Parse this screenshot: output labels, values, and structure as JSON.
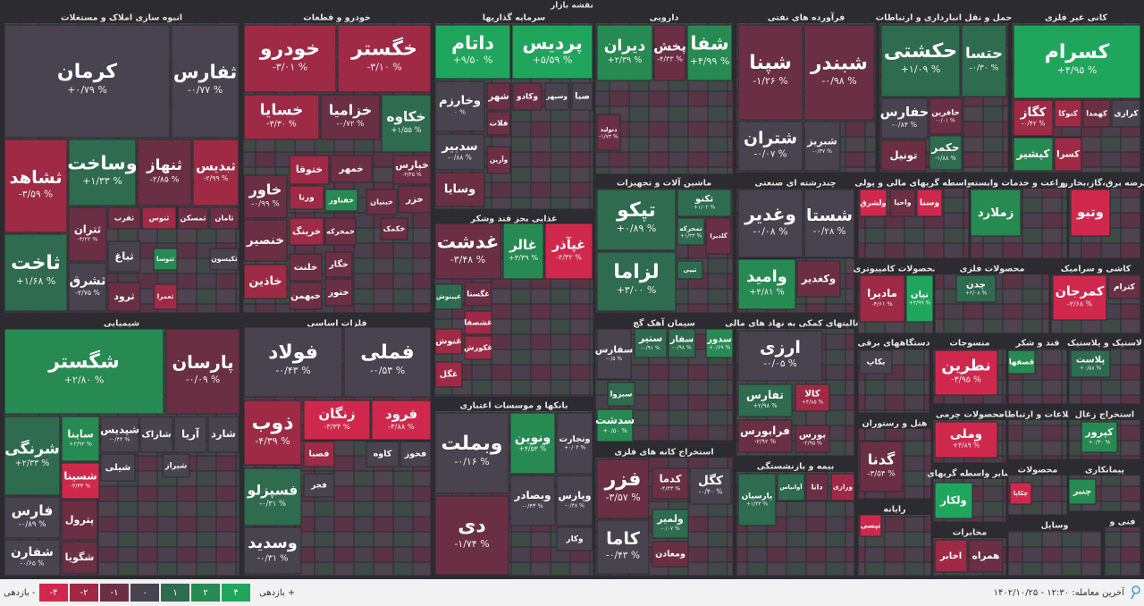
{
  "title": "نقشه بازار",
  "sectors": [
    {
      "name": "انبوه سازی املاک و مستغلات",
      "tiles": [
        {
          "symbol": "کرمان",
          "change": "+۰/۷۹ %",
          "color": "#48434f"
        },
        {
          "symbol": "ثفارس",
          "change": "-۰/۷۷ %",
          "color": "#48434f"
        },
        {
          "symbol": "ثشاهد",
          "change": "-۳/۵۹ %",
          "color": "#9e2a45"
        },
        {
          "symbol": "وساخت",
          "change": "+۱/۳۳ %",
          "color": "#2f6b4f"
        },
        {
          "symbol": "ثنهاز",
          "change": "-۲/۸۵ %",
          "color": "#6b2f44"
        },
        {
          "symbol": "ثبدیس",
          "change": "-۲/۹۹ %",
          "color": "#9e2a45"
        },
        {
          "symbol": "ثاخت",
          "change": "+۱/۶۸ %",
          "color": "#2f6b4f"
        },
        {
          "symbol": "ثتران",
          "change": "-۳/۲۲ %",
          "color": "#6b2f44"
        },
        {
          "symbol": "ثفرب",
          "color": "#6b2f44"
        },
        {
          "symbol": "ثنوس",
          "color": "#9e2a45"
        },
        {
          "symbol": "ثمسکن",
          "color": "#6b2f44"
        },
        {
          "symbol": "ثامان",
          "color": "#6b2f44"
        },
        {
          "symbol": "ثباغ",
          "color": "#48434f"
        },
        {
          "symbol": "ثتوسا",
          "color": "#278a52"
        },
        {
          "symbol": "ثشرق",
          "change": "-۲/۷۵ %",
          "color": "#48434f"
        },
        {
          "symbol": "ثرود",
          "color": "#6b2f44"
        },
        {
          "symbol": "ثعمرا",
          "color": "#9e2a45"
        },
        {
          "symbol": "ثکیسون",
          "color": "#48434f"
        }
      ]
    },
    {
      "name": "خودرو و قطعات",
      "tiles": [
        {
          "symbol": "خودرو",
          "change": "-۳/۰۱ %",
          "color": "#9e2a45"
        },
        {
          "symbol": "خگستر",
          "change": "-۳/۱۰ %",
          "color": "#9e2a45"
        },
        {
          "symbol": "خسایا",
          "change": "-۳/۳۰ %",
          "color": "#9e2a45"
        },
        {
          "symbol": "خزامیا",
          "change": "-۰/۷۲ %",
          "color": "#6b2f44"
        },
        {
          "symbol": "خکاوه",
          "change": "+۱/۵۵ %",
          "color": "#2f6b4f"
        },
        {
          "symbol": "خاور",
          "change": "-۰/۹۹ %",
          "color": "#6b2f44"
        },
        {
          "symbol": "ختوقا",
          "color": "#9e2a45"
        },
        {
          "symbol": "خمهر",
          "color": "#6b2f44"
        },
        {
          "symbol": "خپارس",
          "change": "-۳/۴۵ %",
          "color": "#6b2f44"
        },
        {
          "symbol": "ورنا",
          "color": "#9e2a45"
        },
        {
          "symbol": "خفناور",
          "color": "#278a52"
        },
        {
          "symbol": "خبنیان",
          "color": "#6b2f44"
        },
        {
          "symbol": "خزر",
          "color": "#6b2f44"
        },
        {
          "symbol": "خنصیر",
          "color": "#6b2f44"
        },
        {
          "symbol": "خرینگ",
          "color": "#9e2a45"
        },
        {
          "symbol": "خمحرکه",
          "color": "#6b2f44"
        },
        {
          "symbol": "خکمک",
          "color": "#6b2f44"
        },
        {
          "symbol": "خاذین",
          "color": "#9e2a45"
        },
        {
          "symbol": "خلنت",
          "color": "#6b2f44"
        },
        {
          "symbol": "خگار",
          "color": "#6b2f44"
        },
        {
          "symbol": "خبهمن",
          "color": "#6b2f44"
        },
        {
          "symbol": "ختور",
          "color": "#6b2f44"
        }
      ]
    },
    {
      "name": "سرمایه گذاریها",
      "tiles": [
        {
          "symbol": "داتام",
          "change": "+۹/۵۰ %",
          "color": "#1fa65c"
        },
        {
          "symbol": "پردیس",
          "change": "+۵/۵۹ %",
          "color": "#1fa65c"
        },
        {
          "symbol": "وخارزم",
          "change": "۰ %",
          "color": "#48434f"
        },
        {
          "symbol": "شهر",
          "color": "#6b2f44"
        },
        {
          "symbol": "وکادو",
          "color": "#6b2f44"
        },
        {
          "symbol": "وسپهر",
          "color": "#48434f"
        },
        {
          "symbol": "صبا",
          "color": "#48434f"
        },
        {
          "symbol": "فلات",
          "color": "#6b2f44"
        },
        {
          "symbol": "سدبیر",
          "change": "-۰/۸۸ %",
          "color": "#48434f"
        },
        {
          "symbol": "وآرین",
          "color": "#6b2f44"
        },
        {
          "symbol": "وسایا",
          "color": "#6b2f44"
        }
      ]
    },
    {
      "name": "دارویی",
      "tiles": [
        {
          "symbol": "دیران",
          "change": "+۲/۳۹ %",
          "color": "#278a52"
        },
        {
          "symbol": "پخش",
          "change": "-۴/۳۳ %",
          "color": "#6b2f44"
        },
        {
          "symbol": "شفا",
          "change": "+۴/۹۹ %",
          "color": "#278a52"
        },
        {
          "symbol": "دتولید",
          "change": "-۱/۷۳ %",
          "color": "#6b2f44"
        }
      ]
    },
    {
      "name": "فرآورده های نفتی",
      "tiles": [
        {
          "symbol": "شپنا",
          "change": "-۱/۲۶ %",
          "color": "#6b2f44"
        },
        {
          "symbol": "شبندر",
          "change": "-۰/۹۸ %",
          "color": "#6b2f44"
        },
        {
          "symbol": "شتران",
          "change": "-۰/۰۷ %",
          "color": "#48434f"
        },
        {
          "symbol": "شبریز",
          "change": "-۰/۳۷ %",
          "color": "#48434f"
        }
      ]
    },
    {
      "name": "حمل و نقل انبارداری و ارتباطات",
      "tiles": [
        {
          "symbol": "حکشتی",
          "change": "+۱/۰۹ %",
          "color": "#2f6b4f"
        },
        {
          "symbol": "حتسا",
          "change": "-۰/۳۰ %",
          "color": "#2f6b4f"
        },
        {
          "symbol": "حفارس",
          "change": "-۰/۸۴ %",
          "color": "#48434f"
        },
        {
          "symbol": "حافرین",
          "change": "-۰/۰۱ %",
          "color": "#6b2f44"
        },
        {
          "symbol": "تونیل",
          "color": "#6b2f44"
        },
        {
          "symbol": "حکمر",
          "change": "-۱/۸۸ %",
          "color": "#2f6b4f"
        }
      ]
    },
    {
      "name": "کانی غیر فلزی",
      "tiles": [
        {
          "symbol": "کسرام",
          "change": "+۴/۹۵ %",
          "color": "#1fa65c"
        },
        {
          "symbol": "کگاز",
          "change": "-۰/۴۲ %",
          "color": "#9e2a45"
        },
        {
          "symbol": "کنوکا",
          "color": "#9e2a45"
        },
        {
          "symbol": "کهمدا",
          "color": "#6b2f44"
        },
        {
          "symbol": "کرازی",
          "color": "#48434f"
        },
        {
          "symbol": "کپشیر",
          "color": "#278a52"
        },
        {
          "symbol": "کسرا",
          "color": "#9e2a45"
        }
      ]
    },
    {
      "name": "شیمیایی",
      "tiles": [
        {
          "symbol": "شگستر",
          "change": "+۲/۸۰ %",
          "color": "#278a52"
        },
        {
          "symbol": "پارسان",
          "change": "-۰/۰۹ %",
          "color": "#6b2f44"
        },
        {
          "symbol": "شرنگی",
          "change": "+۲/۳۳ %",
          "color": "#2f6b4f"
        },
        {
          "symbol": "ساینا",
          "change": "+۲/۹۲ %",
          "color": "#278a52"
        },
        {
          "symbol": "شپدیس",
          "change": "-۰/۴۴ %",
          "color": "#48434f"
        },
        {
          "symbol": "شاراک",
          "color": "#48434f"
        },
        {
          "symbol": "آریا",
          "color": "#48434f"
        },
        {
          "symbol": "شارد",
          "color": "#48434f"
        },
        {
          "symbol": "شسینا",
          "change": "-۳/۳۳ %",
          "color": "#d0284c"
        },
        {
          "symbol": "شیلی",
          "color": "#48434f"
        },
        {
          "symbol": "شیراز",
          "color": "#48434f"
        },
        {
          "symbol": "فارس",
          "change": "-۰/۸۹ %",
          "color": "#48434f"
        },
        {
          "symbol": "پترول",
          "color": "#6b2f44"
        },
        {
          "symbol": "شگویا",
          "color": "#6b2f44"
        },
        {
          "symbol": "شفارن",
          "change": "-۰/۶۵ %",
          "color": "#48434f"
        }
      ]
    },
    {
      "name": "فلزات اساسی",
      "tiles": [
        {
          "symbol": "فولاد",
          "change": "-۰/۴۳ %",
          "color": "#48434f"
        },
        {
          "symbol": "فملی",
          "change": "-۰/۵۳ %",
          "color": "#48434f"
        },
        {
          "symbol": "ذوب",
          "change": "-۴/۳۹ %",
          "color": "#9e2a45"
        },
        {
          "symbol": "زنگان",
          "change": "-۳/۳۴ %",
          "color": "#d0284c"
        },
        {
          "symbol": "فرود",
          "change": "-۳/۸۸ %",
          "color": "#d0284c"
        },
        {
          "symbol": "کاوه",
          "color": "#48434f"
        },
        {
          "symbol": "فخوز",
          "color": "#48434f"
        },
        {
          "symbol": "فصبا",
          "color": "#9e2a45"
        },
        {
          "symbol": "فسپزلو",
          "change": "-۰/۳۱ %",
          "color": "#2f6b4f"
        },
        {
          "symbol": "فجر",
          "color": "#48434f"
        },
        {
          "symbol": "وسدید",
          "change": "-۰/۳۱ %",
          "color": "#48434f"
        }
      ]
    },
    {
      "name": "غذایی بجز قند وشکر",
      "tiles": [
        {
          "symbol": "غدشت",
          "change": "-۳/۴۸ %",
          "color": "#6b2f44"
        },
        {
          "symbol": "غالر",
          "change": "+۳/۳۹ %",
          "color": "#278a52"
        },
        {
          "symbol": "غپآذر",
          "change": "-۴/۳۲ %",
          "color": "#d0284c"
        },
        {
          "symbol": "غگستا",
          "color": "#6b2f44"
        },
        {
          "symbol": "غپینوش",
          "color": "#2f6b4f"
        },
        {
          "symbol": "غشصفا",
          "color": "#9e2a45"
        },
        {
          "symbol": "غنوش",
          "color": "#9e2a45"
        },
        {
          "symbol": "غگل",
          "color": "#9e2a45"
        },
        {
          "symbol": "غکورش",
          "color": "#9e2a45"
        }
      ]
    },
    {
      "name": "بانکها و موسسات اعتباری",
      "tiles": [
        {
          "symbol": "وبملت",
          "change": "-۰/۱۶ %",
          "color": "#48434f"
        },
        {
          "symbol": "دی",
          "change": "-۱/۷۴ %",
          "color": "#6b2f44"
        },
        {
          "symbol": "ونوین",
          "change": "+۴/۵۳ %",
          "color": "#278a52"
        },
        {
          "symbol": "وتجارت",
          "change": "+۰/۰۴ %",
          "color": "#48434f"
        },
        {
          "symbol": "وبصادر",
          "change": "-۰/۴۳ %",
          "color": "#48434f"
        },
        {
          "symbol": "وپارس",
          "change": "-۰/۴۸ %",
          "color": "#48434f"
        },
        {
          "symbol": "وکار",
          "color": "#48434f"
        }
      ]
    },
    {
      "name": "ماشین آلات و تجهیزات",
      "tiles": [
        {
          "symbol": "تپکو",
          "change": "+۰/۸۹ %",
          "color": "#2f6b4f"
        },
        {
          "symbol": "لزاما",
          "change": "+۳/۰۰ %",
          "color": "#2f6b4f"
        },
        {
          "symbol": "تکنو",
          "change": "+۱/۰۲ %",
          "color": "#2f6b4f"
        },
        {
          "symbol": "تمحرکه",
          "change": "+۱/۳۳ %",
          "color": "#2f6b4f"
        },
        {
          "symbol": "گلدیرا",
          "color": "#6b2f44"
        },
        {
          "symbol": "تیپی",
          "color": "#2f6b4f"
        }
      ]
    },
    {
      "name": "سیمان آهک گچ",
      "tiles": [
        {
          "symbol": "سفارس",
          "change": "-۰/۵ %",
          "color": "#48434f"
        },
        {
          "symbol": "ستیر",
          "change": "-۰/۹۱ %",
          "color": "#2f6b4f"
        },
        {
          "symbol": "سفار",
          "change": "-۰/۹۸ %",
          "color": "#2f6b4f"
        },
        {
          "symbol": "سدور",
          "change": "+۰/۶۹ %",
          "color": "#278a52"
        },
        {
          "symbol": "سبزوا",
          "color": "#2f6b4f"
        },
        {
          "symbol": "سدشت",
          "change": "+۰/۵۰ %",
          "color": "#278a52"
        }
      ]
    },
    {
      "name": "استخراج کانه های فلزی",
      "tiles": [
        {
          "symbol": "فزر",
          "change": "-۳/۵۷ %",
          "color": "#6b2f44"
        },
        {
          "symbol": "کدما",
          "change": "-۴/۴۳ %",
          "color": "#6b2f44"
        },
        {
          "symbol": "کگل",
          "change": "-۰/۴۰ %",
          "color": "#48434f"
        },
        {
          "symbol": "ولمیر",
          "change": "-۰/۰۷ %",
          "color": "#2f6b4f"
        },
        {
          "symbol": "کاما",
          "change": "-۰/۴۳ %",
          "color": "#48434f"
        },
        {
          "symbol": "ومعادن",
          "color": "#6b2f44"
        }
      ]
    },
    {
      "name": "چندرشته ای صنعتی",
      "tiles": [
        {
          "symbol": "وغدیر",
          "change": "-۰/۰۸ %",
          "color": "#48434f"
        },
        {
          "symbol": "شستا",
          "change": "-۰/۲۸ %",
          "color": "#48434f"
        },
        {
          "symbol": "وامید",
          "change": "+۴/۸۱ %",
          "color": "#278a52"
        },
        {
          "symbol": "وکغدیر",
          "color": "#6b2f44"
        }
      ]
    },
    {
      "name": "فعالیتهای کمکی به نهاد های مالی",
      "tiles": [
        {
          "symbol": "ارزی",
          "change": "-۰/۰۵ %",
          "color": "#48434f"
        },
        {
          "symbol": "تفارس",
          "change": "+۲/۹۸ %",
          "color": "#2f6b4f"
        },
        {
          "symbol": "کالا",
          "change": "+۴/۸۵ %",
          "color": "#9e2a45"
        },
        {
          "symbol": "فرابورس",
          "change": "-۲/۹۲ %",
          "color": "#6b2f44"
        },
        {
          "symbol": "بورس",
          "change": "-۲/۹۵ %",
          "color": "#6b2f44"
        }
      ]
    },
    {
      "name": "بیمه و بازنشستگی",
      "tiles": [
        {
          "symbol": "پارسیان",
          "change": "+۱/۳۳ %",
          "color": "#2f6b4f"
        },
        {
          "symbol": "آوانیاس",
          "color": "#2f6b4f"
        },
        {
          "symbol": "دانا",
          "color": "#6b2f44"
        },
        {
          "symbol": "ورازی",
          "color": "#9e2a45"
        }
      ]
    },
    {
      "name": "واسطه گریهای مالی و پولی",
      "tiles": [
        {
          "symbol": "ولشرق",
          "color": "#d0284c"
        },
        {
          "symbol": "واحیا",
          "color": "#6b2f44"
        },
        {
          "symbol": "وسنا",
          "color": "#d0284c"
        }
      ]
    },
    {
      "name": "زراعت و خدمات وابسته",
      "tiles": [
        {
          "symbol": "زملارد",
          "color": "#278a52"
        }
      ]
    },
    {
      "name": "عرضه برق،گاز،بخار و",
      "tiles": [
        {
          "symbol": "وتبو",
          "color": "#d0284c"
        }
      ]
    },
    {
      "name": "محصولات کامپیوتری",
      "tiles": [
        {
          "symbol": "مادیرا",
          "change": "-۴/۶۱ %",
          "color": "#9e2a45"
        },
        {
          "symbol": "نیان",
          "change": "+۴/۹۹ %",
          "color": "#1fa65c"
        }
      ]
    },
    {
      "name": "محصولات فلزی",
      "tiles": [
        {
          "symbol": "چدن",
          "change": "+۲/۰۸ %",
          "color": "#2f6b4f"
        }
      ]
    },
    {
      "name": "کاشی و سرامیک",
      "tiles": [
        {
          "symbol": "کمرجان",
          "change": "-۲/۶۸ %",
          "color": "#d0284c"
        },
        {
          "symbol": "کترام",
          "color": "#6b2f44"
        }
      ]
    },
    {
      "name": "دستگاههای برقی",
      "tiles": [
        {
          "symbol": "بکاپ",
          "color": "#48434f"
        }
      ]
    },
    {
      "name": "منسوجات",
      "tiles": [
        {
          "symbol": "نطرین",
          "change": "-۳/۹۵ %",
          "color": "#d0284c"
        }
      ]
    },
    {
      "name": "قند و شکر",
      "tiles": [
        {
          "symbol": "قصفها",
          "color": "#278a52"
        }
      ]
    },
    {
      "name": "لاستیک و پلاستیک",
      "tiles": [
        {
          "symbol": "پلاست",
          "change": "+۰/۵۸ %",
          "color": "#2f6b4f"
        }
      ]
    },
    {
      "name": "هتل و رستوران",
      "tiles": [
        {
          "symbol": "گدنا",
          "change": "-۳/۵۴ %",
          "color": "#6b2f44"
        }
      ]
    },
    {
      "name": "محصولات چرمی",
      "tiles": [
        {
          "symbol": "وملی",
          "change": "+۴/۸۹ %",
          "color": "#d0284c"
        }
      ]
    },
    {
      "name": "اطلاعات و ارتباطات",
      "tiles": []
    },
    {
      "name": "استخراج زغال",
      "tiles": [
        {
          "symbol": "کپرور",
          "change": "+۰/۳۰ %",
          "color": "#278a52"
        }
      ]
    },
    {
      "name": "رایانه",
      "tiles": [
        {
          "symbol": "تپسی",
          "color": "#d0284c"
        }
      ]
    },
    {
      "name": "سایر واسطه گریهای",
      "tiles": [
        {
          "symbol": "ولکار",
          "color": "#1fa65c"
        }
      ]
    },
    {
      "name": "محصولات",
      "tiles": [
        {
          "symbol": "چکاپا",
          "color": "#d0284c"
        }
      ]
    },
    {
      "name": "پیمانکاری",
      "tiles": [
        {
          "symbol": "چنبر",
          "color": "#278a52"
        }
      ]
    },
    {
      "name": "مخابرات",
      "tiles": [
        {
          "symbol": "اخابر",
          "color": "#9e2a45"
        },
        {
          "symbol": "همراه",
          "color": "#6b2f44"
        }
      ]
    },
    {
      "name": "وسایل",
      "tiles": []
    },
    {
      "name": "فنی و",
      "tiles": []
    }
  ],
  "legend": {
    "negative_label": "بازدهی -",
    "positive_label": "بازدهی +",
    "steps": [
      {
        "label": "-۴",
        "color": "#d0284c"
      },
      {
        "label": "-۲",
        "color": "#9e2a45"
      },
      {
        "label": "-۱",
        "color": "#6b2f44"
      },
      {
        "label": "۰",
        "color": "#48434f"
      },
      {
        "label": "۱",
        "color": "#2f6b4f"
      },
      {
        "label": "۲",
        "color": "#278a52"
      },
      {
        "label": "۴",
        "color": "#1fa65c"
      }
    ]
  },
  "last_trade": "آخرین معامله: ۱۲:۳۰ - ۱۴۰۲/۱۰/۲۵"
}
